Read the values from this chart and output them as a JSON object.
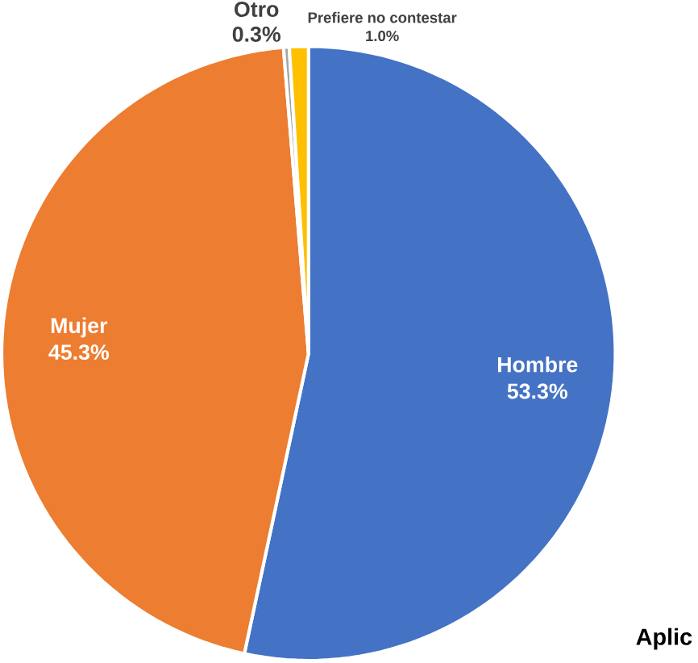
{
  "chart_data": {
    "type": "pie",
    "categories": [
      "Hombre",
      "Mujer",
      "Otro",
      "Prefiere no contestar"
    ],
    "values": [
      53.3,
      45.3,
      0.3,
      1.0
    ],
    "value_labels": [
      "53.3%",
      "45.3%",
      "0.3%",
      "1.0%"
    ],
    "colors": [
      "#4472c4",
      "#ed7d31",
      "#a5a5a5",
      "#ffc000"
    ],
    "annotations": [
      "Aplic"
    ]
  }
}
